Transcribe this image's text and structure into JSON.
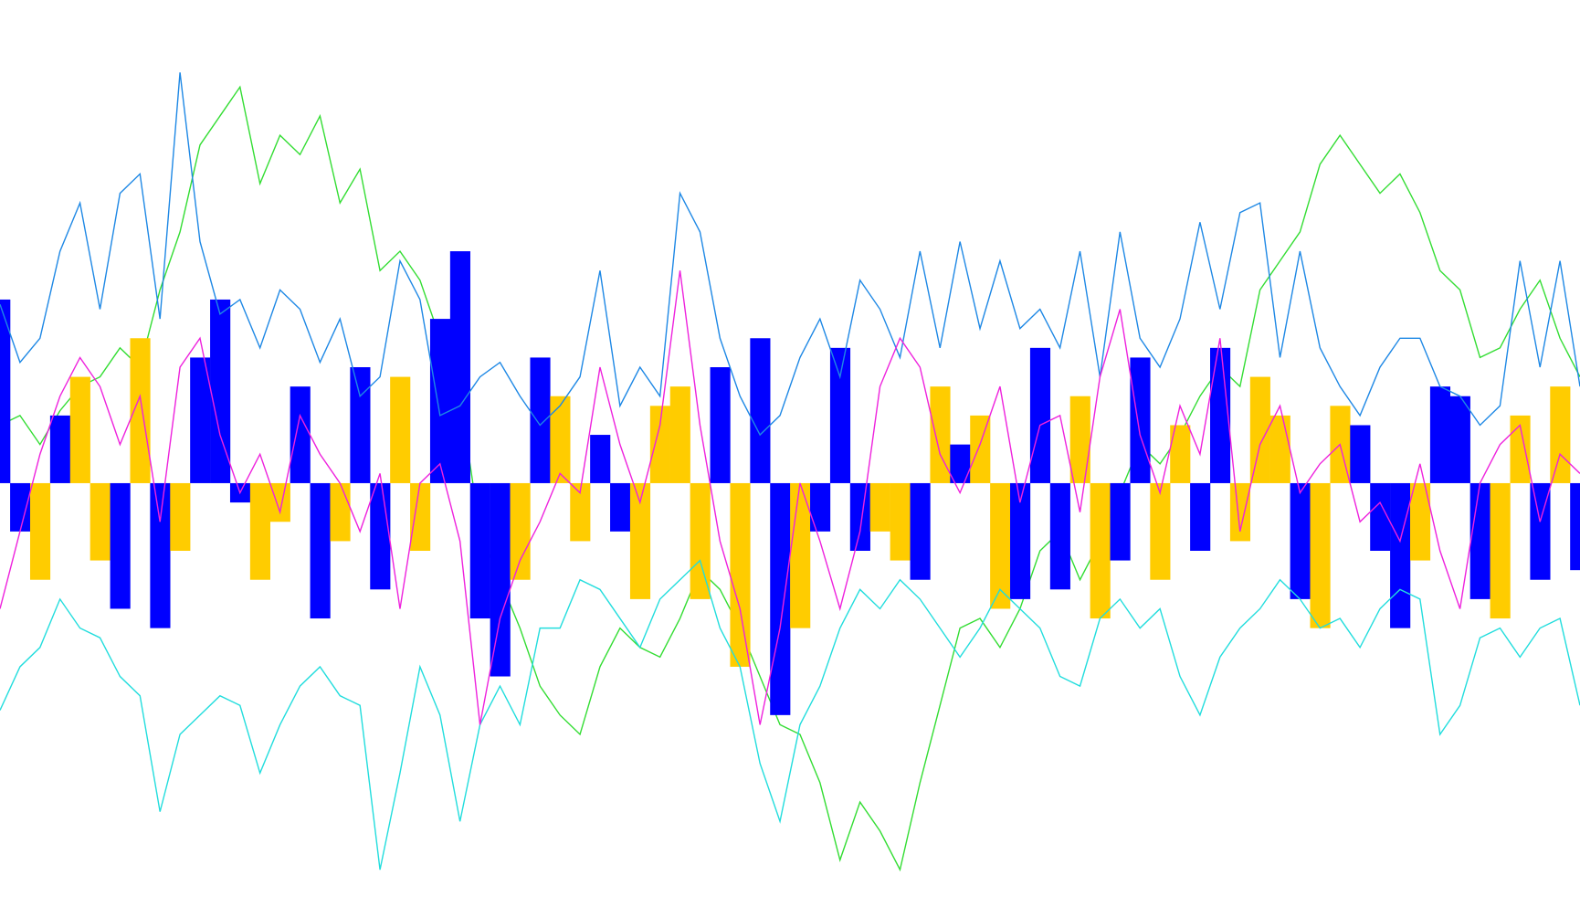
{
  "chart_data": {
    "type": "combo",
    "xlim": [
      0,
      79
    ],
    "ylim": [
      -90,
      100
    ],
    "series": [
      {
        "type": "line",
        "color": "#33dd33",
        "values": [
          12,
          14,
          8,
          15,
          20,
          22,
          28,
          24,
          40,
          52,
          70,
          76,
          82,
          62,
          72,
          68,
          76,
          58,
          65,
          44,
          48,
          42,
          30,
          18,
          -10,
          -20,
          -30,
          -42,
          -48,
          -52,
          -38,
          -30,
          -34,
          -36,
          -28,
          -18,
          -22,
          -30,
          -40,
          -50,
          -52,
          -62,
          -78,
          -66,
          -72,
          -80,
          -62,
          -46,
          -30,
          -28,
          -34,
          -26,
          -14,
          -10,
          -20,
          -12,
          -2,
          8,
          4,
          10,
          18,
          24,
          20,
          40,
          46,
          52,
          66,
          72,
          66,
          60,
          64,
          56,
          44,
          40,
          26,
          28,
          36,
          42,
          30,
          22
        ]
      },
      {
        "type": "bar",
        "colors": [
          "#0000ff",
          "#0000ff",
          "#ffcc00",
          "#0000ff",
          "#ffcc00",
          "#ffcc00",
          "#0000ff",
          "#ffcc00",
          "#0000ff",
          "#ffcc00",
          "#0000ff",
          "#0000ff",
          "#0000ff",
          "#ffcc00",
          "#ffcc00",
          "#0000ff",
          "#0000ff",
          "#ffcc00",
          "#0000ff",
          "#0000ff",
          "#ffcc00",
          "#ffcc00",
          "#0000ff",
          "#0000ff",
          "#0000ff",
          "#0000ff",
          "#ffcc00",
          "#0000ff",
          "#ffcc00",
          "#ffcc00",
          "#0000ff",
          "#0000ff",
          "#ffcc00",
          "#ffcc00",
          "#ffcc00",
          "#ffcc00",
          "#0000ff",
          "#ffcc00",
          "#0000ff",
          "#0000ff",
          "#ffcc00",
          "#0000ff",
          "#0000ff",
          "#0000ff",
          "#ffcc00",
          "#ffcc00",
          "#0000ff",
          "#ffcc00",
          "#0000ff",
          "#ffcc00",
          "#ffcc00",
          "#0000ff",
          "#0000ff",
          "#0000ff",
          "#ffcc00",
          "#ffcc00",
          "#0000ff",
          "#0000ff",
          "#ffcc00",
          "#ffcc00",
          "#0000ff",
          "#0000ff",
          "#ffcc00",
          "#ffcc00",
          "#ffcc00",
          "#0000ff",
          "#ffcc00",
          "#ffcc00",
          "#0000ff",
          "#0000ff",
          "#0000ff",
          "#ffcc00",
          "#0000ff",
          "#0000ff",
          "#0000ff",
          "#ffcc00",
          "#ffcc00",
          "#0000ff",
          "#ffcc00",
          "#0000ff"
        ],
        "values": [
          38,
          -10,
          -20,
          14,
          22,
          -16,
          -26,
          30,
          -30,
          -14,
          26,
          38,
          -4,
          -20,
          -8,
          20,
          -28,
          -12,
          24,
          -22,
          22,
          -14,
          34,
          48,
          -28,
          -40,
          -20,
          26,
          18,
          -12,
          10,
          -10,
          -24,
          16,
          20,
          -24,
          24,
          -38,
          30,
          -48,
          -30,
          -10,
          28,
          -14,
          -10,
          -16,
          -20,
          20,
          8,
          14,
          -26,
          -24,
          28,
          -22,
          18,
          -28,
          -16,
          26,
          -20,
          12,
          -14,
          28,
          -12,
          22,
          14,
          -24,
          -30,
          16,
          12,
          -14,
          -30,
          -16,
          20,
          18,
          -24,
          -28,
          14,
          -20,
          20,
          -18
        ]
      },
      {
        "type": "line",
        "color": "#1e88e5",
        "values": [
          37,
          25,
          30,
          48,
          58,
          36,
          60,
          64,
          34,
          85,
          50,
          35,
          38,
          28,
          40,
          36,
          25,
          34,
          18,
          22,
          46,
          38,
          14,
          16,
          22,
          25,
          18,
          12,
          16,
          22,
          44,
          16,
          24,
          18,
          60,
          52,
          30,
          18,
          10,
          14,
          26,
          34,
          22,
          42,
          36,
          26,
          48,
          28,
          50,
          32,
          46,
          32,
          36,
          28,
          48,
          22,
          52,
          30,
          24,
          34,
          54,
          36,
          56,
          58,
          26,
          48,
          28,
          20,
          14,
          24,
          30,
          30,
          20,
          18,
          12,
          16,
          46,
          24,
          46,
          20
        ]
      },
      {
        "type": "line",
        "color": "#22dddd",
        "values": [
          -47,
          -38,
          -34,
          -24,
          -30,
          -32,
          -40,
          -44,
          -68,
          -52,
          -48,
          -44,
          -46,
          -60,
          -50,
          -42,
          -38,
          -44,
          -46,
          -80,
          -60,
          -38,
          -48,
          -70,
          -50,
          -42,
          -50,
          -30,
          -30,
          -20,
          -22,
          -28,
          -34,
          -24,
          -20,
          -16,
          -30,
          -38,
          -58,
          -70,
          -50,
          -42,
          -30,
          -22,
          -26,
          -20,
          -24,
          -30,
          -36,
          -30,
          -22,
          -26,
          -30,
          -40,
          -42,
          -28,
          -24,
          -30,
          -26,
          -40,
          -48,
          -36,
          -30,
          -26,
          -20,
          -24,
          -30,
          -28,
          -34,
          -26,
          -22,
          -24,
          -52,
          -46,
          -32,
          -30,
          -36,
          -30,
          -28,
          -46
        ]
      },
      {
        "type": "line",
        "color": "#ee22dd",
        "values": [
          -26,
          -10,
          6,
          18,
          26,
          20,
          8,
          18,
          -8,
          24,
          30,
          10,
          -2,
          6,
          -6,
          14,
          6,
          0,
          -10,
          2,
          -26,
          0,
          4,
          -12,
          -50,
          -28,
          -16,
          -8,
          2,
          -2,
          24,
          8,
          -4,
          12,
          44,
          12,
          -12,
          -26,
          -50,
          -30,
          0,
          -12,
          -26,
          -10,
          20,
          30,
          24,
          6,
          -2,
          8,
          20,
          -4,
          12,
          14,
          -6,
          22,
          36,
          10,
          -2,
          16,
          6,
          30,
          -10,
          8,
          16,
          -2,
          4,
          8,
          -8,
          -4,
          -12,
          4,
          -14,
          -26,
          0,
          8,
          12,
          -8,
          6,
          2
        ]
      }
    ]
  }
}
